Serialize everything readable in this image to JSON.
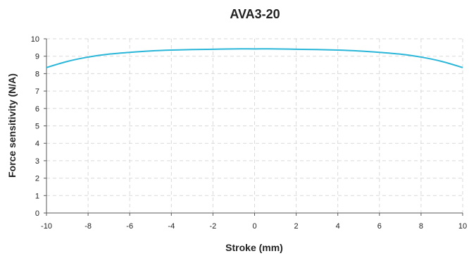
{
  "chart_data": {
    "type": "line",
    "title": "AVA3-20",
    "xlabel": "Stroke (mm)",
    "ylabel": "Force sensitivity (N/A)",
    "xlim": [
      -10,
      10
    ],
    "ylim": [
      0,
      10
    ],
    "xticks": [
      "-10",
      "-8",
      "-6",
      "-4",
      "-2",
      "0",
      "2",
      "4",
      "6",
      "8",
      "10"
    ],
    "yticks": [
      "0",
      "1",
      "2",
      "3",
      "4",
      "5",
      "6",
      "7",
      "8",
      "9",
      "10"
    ],
    "grid": true,
    "grid_style": "dashed",
    "series": [
      {
        "color": "#29b6d8",
        "x": [
          -10,
          -9,
          -8,
          -7,
          -6,
          -5,
          -4,
          -3,
          -2,
          -1,
          0,
          1,
          2,
          3,
          4,
          5,
          6,
          7,
          8,
          9,
          10
        ],
        "y": [
          8.35,
          8.7,
          8.95,
          9.12,
          9.22,
          9.3,
          9.35,
          9.38,
          9.4,
          9.42,
          9.42,
          9.42,
          9.4,
          9.38,
          9.35,
          9.3,
          9.22,
          9.12,
          8.95,
          8.7,
          8.35
        ]
      }
    ]
  }
}
